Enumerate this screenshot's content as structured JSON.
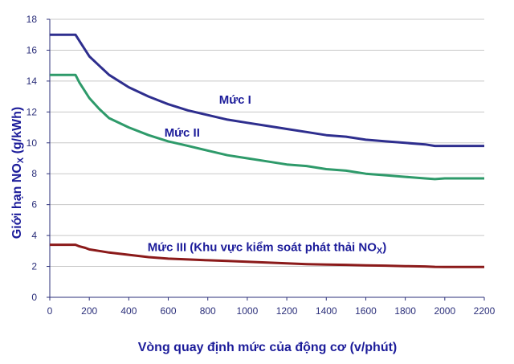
{
  "chart_data": {
    "type": "line",
    "xlabel": "Vòng quay định mức của động cơ (v/phút)",
    "ylabel": {
      "pre": "Giới hạn NO",
      "sub": "X",
      "post": " (g/kWh)"
    },
    "xlim": [
      0,
      2200
    ],
    "ylim": [
      0,
      18
    ],
    "xticks": [
      0,
      200,
      400,
      600,
      800,
      1000,
      1200,
      1400,
      1600,
      1800,
      2000,
      2200
    ],
    "yticks": [
      0,
      2,
      4,
      6,
      8,
      10,
      12,
      14,
      16,
      18
    ],
    "grid": "horizontal",
    "colors": {
      "axis": "#2b2f7a",
      "grid": "#c8c8c8",
      "label": "#1c1c9a"
    },
    "series": [
      {
        "name": "Mức I",
        "color": "#2e2e8e",
        "label": {
          "pre": "Mức I"
        },
        "x": [
          0,
          130,
          150,
          180,
          200,
          250,
          300,
          400,
          500,
          600,
          700,
          800,
          900,
          1000,
          1100,
          1200,
          1300,
          1400,
          1500,
          1600,
          1700,
          1800,
          1900,
          1950,
          2000,
          2200
        ],
        "y": [
          17.0,
          17.0,
          16.6,
          16.0,
          15.6,
          15.0,
          14.4,
          13.6,
          13.0,
          12.5,
          12.1,
          11.8,
          11.5,
          11.3,
          11.1,
          10.9,
          10.7,
          10.5,
          10.4,
          10.2,
          10.1,
          10.0,
          9.9,
          9.8,
          9.8,
          9.8
        ]
      },
      {
        "name": "Mức II",
        "color": "#2e9a6a",
        "label": {
          "pre": "Mức II"
        },
        "x": [
          0,
          130,
          150,
          180,
          200,
          250,
          300,
          400,
          500,
          600,
          700,
          800,
          900,
          1000,
          1100,
          1200,
          1300,
          1400,
          1500,
          1600,
          1700,
          1800,
          1900,
          1950,
          2000,
          2200
        ],
        "y": [
          14.4,
          14.4,
          13.9,
          13.3,
          12.9,
          12.2,
          11.6,
          11.0,
          10.5,
          10.1,
          9.8,
          9.5,
          9.2,
          9.0,
          8.8,
          8.6,
          8.5,
          8.3,
          8.2,
          8.0,
          7.9,
          7.8,
          7.7,
          7.65,
          7.7,
          7.7
        ]
      },
      {
        "name": "Mức III (Khu vực kiểm soát phát thải NOX)",
        "color": "#8b1a1a",
        "label": {
          "pre": "Mức III (Khu vực kiểm soát phát thải NO",
          "sub": "X",
          "post": ")"
        },
        "x": [
          0,
          130,
          150,
          180,
          200,
          250,
          300,
          400,
          500,
          600,
          700,
          800,
          900,
          1000,
          1100,
          1200,
          1300,
          1400,
          1500,
          1600,
          1700,
          1800,
          1900,
          1950,
          2000,
          2200
        ],
        "y": [
          3.4,
          3.4,
          3.3,
          3.2,
          3.1,
          3.0,
          2.9,
          2.75,
          2.6,
          2.5,
          2.45,
          2.4,
          2.35,
          2.3,
          2.25,
          2.2,
          2.15,
          2.12,
          2.1,
          2.07,
          2.05,
          2.02,
          2.0,
          1.97,
          1.96,
          1.96
        ]
      }
    ]
  }
}
